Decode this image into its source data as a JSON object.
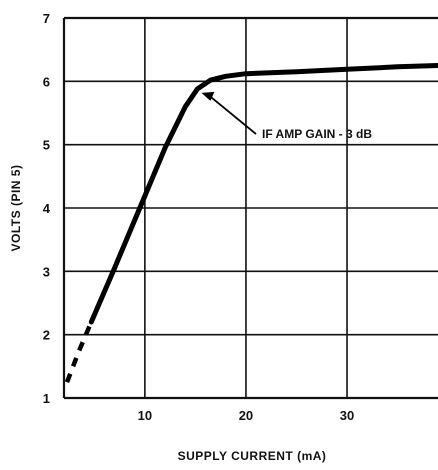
{
  "chart_data": {
    "type": "line",
    "title": "",
    "xlabel": "SUPPLY CURRENT (mA)",
    "ylabel": "VOLTS (PIN 5)",
    "xlim": [
      2,
      39
    ],
    "ylim": [
      1,
      7
    ],
    "x_ticks": [
      10,
      20,
      30
    ],
    "x_tick_labels": [
      "10",
      "20",
      "30"
    ],
    "y_ticks": [
      1,
      2,
      3,
      4,
      5,
      6,
      7
    ],
    "y_tick_labels": [
      "1",
      "2",
      "3",
      "4",
      "5",
      "6",
      "7"
    ],
    "grid": true,
    "series": [
      {
        "style": "dashed",
        "points": [
          [
            2.3,
            1.25
          ],
          [
            3.5,
            1.75
          ],
          [
            4.7,
            2.2
          ]
        ]
      },
      {
        "style": "solid",
        "points": [
          [
            4.7,
            2.2
          ],
          [
            7.0,
            3.05
          ],
          [
            9.5,
            4.0
          ],
          [
            12.0,
            4.95
          ],
          [
            14.0,
            5.6
          ],
          [
            15.2,
            5.88
          ],
          [
            16.5,
            6.02
          ],
          [
            18.0,
            6.08
          ],
          [
            20.0,
            6.12
          ],
          [
            25.0,
            6.15
          ],
          [
            30.0,
            6.19
          ],
          [
            35.0,
            6.23
          ],
          [
            39.0,
            6.25
          ]
        ]
      }
    ],
    "annotations": [
      {
        "text": "IF AMP GAIN - 3 dB",
        "arrow_to": [
          15.0,
          5.85
        ]
      }
    ]
  }
}
